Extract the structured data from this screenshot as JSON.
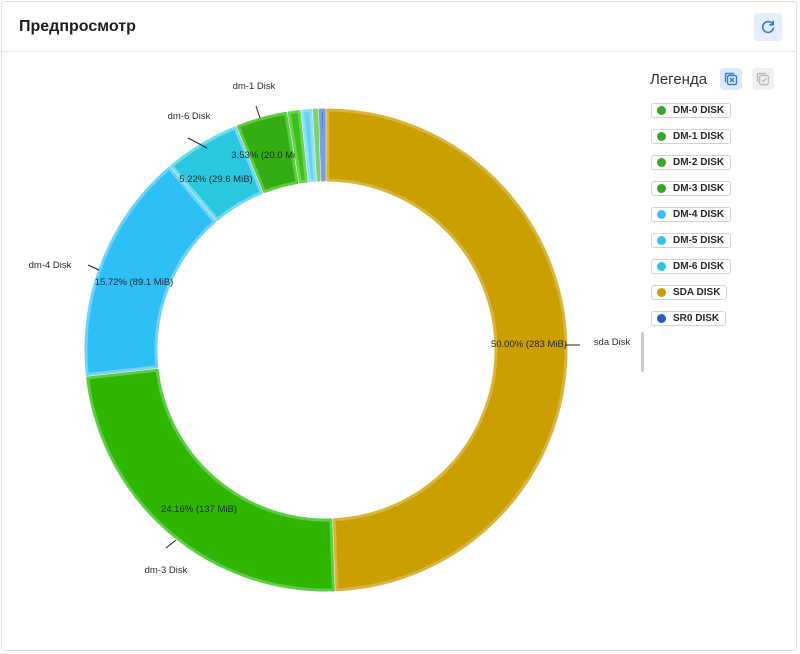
{
  "header": {
    "title": "Предпросмотр",
    "refresh_icon": "refresh-icon"
  },
  "legend": {
    "title": "Легенда",
    "deselect_icon": "legend-deselect-icon",
    "select_icon": "legend-select-icon",
    "items": [
      {
        "label": "DM-0 DISK",
        "color": "#32a825"
      },
      {
        "label": "DM-1 DISK",
        "color": "#32a825"
      },
      {
        "label": "DM-2 DISK",
        "color": "#32a825"
      },
      {
        "label": "DM-3 DISK",
        "color": "#32a825"
      },
      {
        "label": "DM-4 DISK",
        "color": "#35c2f5"
      },
      {
        "label": "DM-5 DISK",
        "color": "#35c2f5"
      },
      {
        "label": "DM-6 DISK",
        "color": "#2ec5dc"
      },
      {
        "label": "SDA DISK",
        "color": "#c99c05"
      },
      {
        "label": "SR0 DISK",
        "color": "#1f5fbf"
      }
    ]
  },
  "chart_data": {
    "type": "pie",
    "donut": true,
    "slices": [
      {
        "name": "sda Disk",
        "percent": 50.0,
        "value_mib": 283,
        "label": "50.00% (283 MiB)",
        "fill": "#cc9f00",
        "stroke": "#d9b43f"
      },
      {
        "name": "dm-3 Disk",
        "percent": 24.16,
        "value_mib": 137,
        "label": "24.16% (137 MiB)",
        "fill": "#2fb600",
        "stroke": "#5ecc45"
      },
      {
        "name": "dm-4 Disk",
        "percent": 15.72,
        "value_mib": 89.1,
        "label": "15.72% (89.1 MiB)",
        "fill": "#2fbff7",
        "stroke": "#6fd3f8"
      },
      {
        "name": "dm-6 Disk",
        "percent": 5.22,
        "value_mib": 29.6,
        "label": "5.22% (29.6 MiB)",
        "fill": "#2ac8e0",
        "stroke": "#72dcec"
      },
      {
        "name": "dm-1 Disk",
        "percent": 3.53,
        "value_mib": 20.0,
        "label": "3.53% (20.0 MiB)",
        "fill": "#33ad12",
        "stroke": "#5ccb3b"
      },
      {
        "name": "dm-2 Disk",
        "percent": 0.9,
        "label": "",
        "fill": "#3bbf1a",
        "stroke": "#6bd34b"
      },
      {
        "name": "dm-5 Disk",
        "percent": 0.8,
        "label": "",
        "fill": "#64d2f6",
        "stroke": "#90e0f8"
      },
      {
        "name": "dm-0 Disk",
        "percent": 0.4,
        "label": "",
        "fill": "#4fc53a",
        "stroke": "#7ad66a"
      },
      {
        "name": "sr0 Disk",
        "percent": 0.5,
        "label": "",
        "fill": "#3a6fd1",
        "stroke": "#7a9fe0"
      }
    ]
  }
}
